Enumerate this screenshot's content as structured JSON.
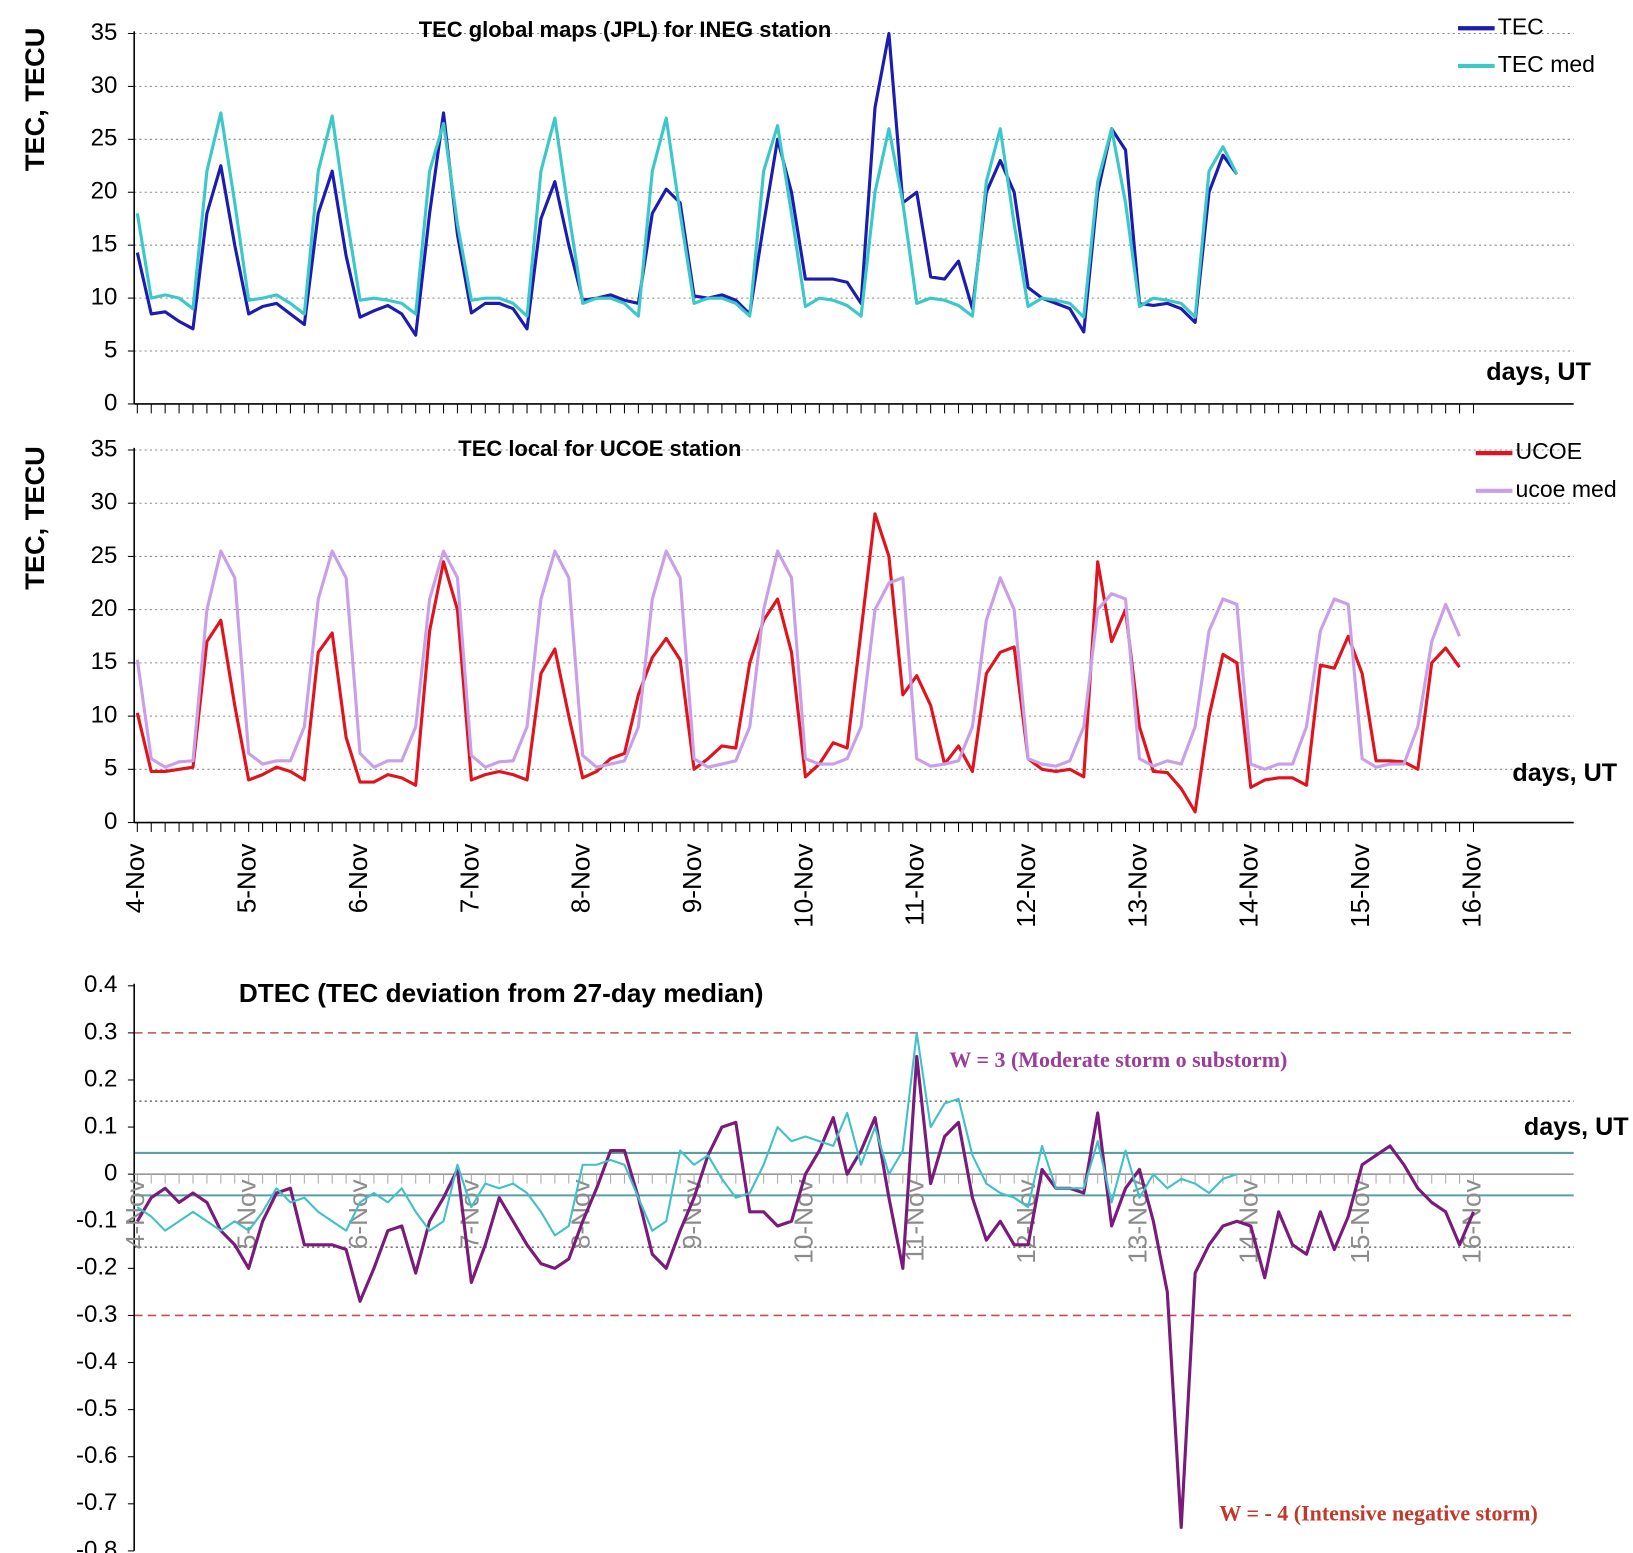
{
  "chart_data": [
    {
      "type": "line",
      "title": "TEC global maps (JPL) for INEG station",
      "y_label": "TEC, TECU",
      "x_label": "days, UT",
      "x": [
        0,
        0.125,
        0.25,
        0.375,
        0.5,
        0.625,
        0.75,
        0.875,
        1,
        1.125,
        1.25,
        1.375,
        1.5,
        1.625,
        1.75,
        1.875,
        2,
        2.125,
        2.25,
        2.375,
        2.5,
        2.625,
        2.75,
        2.875,
        3,
        3.125,
        3.25,
        3.375,
        3.5,
        3.625,
        3.75,
        3.875,
        4,
        4.125,
        4.25,
        4.375,
        4.5,
        4.625,
        4.75,
        4.875,
        5,
        5.125,
        5.25,
        5.375,
        5.5,
        5.625,
        5.75,
        5.875,
        6,
        6.125,
        6.25,
        6.375,
        6.5,
        6.625,
        6.75,
        6.875,
        7,
        7.125,
        7.25,
        7.375,
        7.5,
        7.625,
        7.75,
        7.875,
        8,
        8.125,
        8.25,
        8.375,
        8.5,
        8.625,
        8.75,
        8.875,
        9,
        9.125,
        9.25,
        9.375,
        9.5,
        9.625,
        9.75,
        9.875,
        10,
        10.125,
        10.25,
        10.375,
        10.5,
        10.625,
        10.75,
        10.875,
        11,
        11.125,
        11.25,
        11.375,
        11.5,
        11.625,
        11.75,
        11.875,
        12
      ],
      "xlim": [
        0,
        12.9
      ],
      "ylim": [
        0,
        35
      ],
      "yticks": [
        0,
        5,
        10,
        15,
        20,
        25,
        30,
        35
      ],
      "grid": true,
      "legend": "top-right",
      "series": [
        {
          "name": "TEC",
          "color": "#1c1cb0",
          "values": [
            14.3,
            8.5,
            8.7,
            7.8,
            7.1,
            18,
            22.5,
            15,
            8.5,
            9.2,
            9.5,
            8.5,
            7.5,
            18,
            22,
            14,
            8.2,
            8.8,
            9.3,
            8.5,
            6.5,
            18,
            27.5,
            16,
            8.6,
            9.5,
            9.5,
            9,
            7.1,
            17.5,
            21,
            15,
            9.8,
            10,
            10.3,
            9.8,
            9.5,
            18,
            20.3,
            19,
            10.2,
            10,
            10.3,
            9.8,
            8.5,
            17,
            25,
            20,
            11.8,
            11.8,
            11.8,
            11.5,
            9.5,
            28,
            35,
            19,
            20,
            12,
            11.8,
            13.5,
            9,
            20,
            23,
            20,
            11,
            10,
            9.5,
            9,
            6.8,
            20,
            26,
            24,
            9.5,
            9.3,
            9.5,
            9,
            7.7,
            20,
            23.5,
            21.7,
            null,
            null,
            null,
            null,
            null,
            null,
            null,
            null,
            null,
            null,
            null,
            null,
            null,
            null,
            null,
            null,
            null
          ]
        },
        {
          "name": "TEC med",
          "color": "#3cc8c8",
          "values": [
            18,
            10,
            10.3,
            10,
            9,
            22,
            27.5,
            19,
            9.8,
            10,
            10.3,
            9.5,
            8.5,
            22,
            27.2,
            18,
            9.8,
            10,
            9.8,
            9.5,
            8.5,
            22,
            26.5,
            17,
            9.8,
            10,
            10,
            9.5,
            8.3,
            22,
            27,
            18,
            9.5,
            10,
            10,
            9.5,
            8.3,
            22,
            27,
            18,
            9.5,
            10,
            10,
            9.5,
            8.3,
            22,
            26.3,
            18,
            9.2,
            10,
            9.8,
            9.3,
            8.3,
            20,
            26,
            19,
            9.5,
            10,
            9.8,
            9.3,
            8.3,
            21,
            26,
            17,
            9.2,
            10,
            9.8,
            9.5,
            8.2,
            21,
            26,
            19,
            9.2,
            10,
            9.8,
            9.5,
            8.2,
            22,
            24.3,
            21.7,
            null,
            null,
            null,
            null,
            null,
            null,
            null,
            null,
            null,
            null,
            null,
            null,
            null,
            null,
            null,
            null,
            null
          ]
        }
      ]
    },
    {
      "type": "line",
      "title": "TEC local for UCOE station",
      "y_label": "TEC, TECU",
      "x_label": "days, UT",
      "x": [
        0,
        0.125,
        0.25,
        0.375,
        0.5,
        0.625,
        0.75,
        0.875,
        1,
        1.125,
        1.25,
        1.375,
        1.5,
        1.625,
        1.75,
        1.875,
        2,
        2.125,
        2.25,
        2.375,
        2.5,
        2.625,
        2.75,
        2.875,
        3,
        3.125,
        3.25,
        3.375,
        3.5,
        3.625,
        3.75,
        3.875,
        4,
        4.125,
        4.25,
        4.375,
        4.5,
        4.625,
        4.75,
        4.875,
        5,
        5.125,
        5.25,
        5.375,
        5.5,
        5.625,
        5.75,
        5.875,
        6,
        6.125,
        6.25,
        6.375,
        6.5,
        6.625,
        6.75,
        6.875,
        7,
        7.125,
        7.25,
        7.375,
        7.5,
        7.625,
        7.75,
        7.875,
        8,
        8.125,
        8.25,
        8.375,
        8.5,
        8.625,
        8.75,
        8.875,
        9,
        9.125,
        9.25,
        9.375,
        9.5,
        9.625,
        9.75,
        9.875,
        10,
        10.125,
        10.25,
        10.375,
        10.5,
        10.625,
        10.75,
        10.875,
        11,
        11.125,
        11.25,
        11.375,
        11.5,
        11.625,
        11.75,
        11.875,
        12
      ],
      "xlim": [
        0,
        12.9
      ],
      "ylim": [
        0,
        35
      ],
      "yticks": [
        0,
        5,
        10,
        15,
        20,
        25,
        30,
        35
      ],
      "grid": true,
      "legend": "top-right",
      "xticks": [
        {
          "value": 0,
          "label": "4-Nov"
        },
        {
          "value": 1,
          "label": "5-Nov"
        },
        {
          "value": 2,
          "label": "6-Nov"
        },
        {
          "value": 3,
          "label": "7-Nov"
        },
        {
          "value": 4,
          "label": "8-Nov"
        },
        {
          "value": 5,
          "label": "9-Nov"
        },
        {
          "value": 6,
          "label": "10-Nov"
        },
        {
          "value": 7,
          "label": "11-Nov"
        },
        {
          "value": 8,
          "label": "12-Nov"
        },
        {
          "value": 9,
          "label": "13-Nov"
        },
        {
          "value": 10,
          "label": "14-Nov"
        },
        {
          "value": 11,
          "label": "15-Nov"
        },
        {
          "value": 12,
          "label": "16-Nov"
        }
      ],
      "series": [
        {
          "name": "UCOE",
          "color": "#e0141e",
          "values": [
            10.3,
            4.8,
            4.8,
            5,
            5.2,
            17,
            19,
            11,
            4,
            4.5,
            5.2,
            4.8,
            4,
            16,
            17.8,
            8,
            3.8,
            3.8,
            4.5,
            4.2,
            3.5,
            18,
            24.5,
            20,
            4,
            4.5,
            4.8,
            4.5,
            4,
            14,
            16.3,
            10,
            4.2,
            4.8,
            6,
            6.5,
            12,
            15.5,
            17.3,
            15.3,
            5,
            6,
            7.2,
            7,
            15,
            19,
            21,
            16,
            4.3,
            5.5,
            7.5,
            7,
            18,
            29,
            25,
            12,
            13.8,
            11,
            5.5,
            7.2,
            4.8,
            14,
            16,
            16.5,
            6,
            5,
            4.8,
            5,
            4.3,
            24.5,
            17,
            20,
            9,
            4.8,
            4.7,
            3.2,
            1,
            10,
            15.8,
            15,
            3.3,
            4,
            4.2,
            4.2,
            3.5,
            14.8,
            14.5,
            17.5,
            14,
            5.8,
            5.8,
            5.7,
            5,
            15,
            16.4,
            14.6,
            null
          ]
        },
        {
          "name": "ucoe med",
          "color": "#c9a0e8",
          "values": [
            15.3,
            6,
            5.2,
            5.7,
            5.8,
            20,
            25.5,
            23,
            6.5,
            5.5,
            5.8,
            5.8,
            9,
            21,
            25.5,
            23,
            6.5,
            5.2,
            5.8,
            5.8,
            9,
            21,
            25.5,
            23,
            6.3,
            5.2,
            5.7,
            5.8,
            9,
            21,
            25.5,
            23,
            6.3,
            5.2,
            5.5,
            5.8,
            9,
            21,
            25.5,
            23,
            6,
            5.2,
            5.5,
            5.8,
            9,
            20,
            25.5,
            23,
            6,
            5.5,
            5.5,
            6,
            9,
            20,
            22.5,
            23,
            6,
            5.3,
            5.5,
            5.8,
            9,
            19,
            23,
            20,
            6,
            5.5,
            5.3,
            5.8,
            9,
            20,
            21.5,
            21,
            6,
            5.3,
            5.8,
            5.5,
            9,
            18,
            21,
            20.5,
            5.5,
            5,
            5.5,
            5.5,
            9,
            18,
            21,
            20.5,
            6,
            5.2,
            5.5,
            5.5,
            9,
            17,
            20.5,
            17.5,
            null
          ]
        }
      ]
    },
    {
      "type": "line",
      "title": "DTEC (TEC deviation from 27-day median)",
      "x_label": "days, UT",
      "x": [
        0,
        0.125,
        0.25,
        0.375,
        0.5,
        0.625,
        0.75,
        0.875,
        1,
        1.125,
        1.25,
        1.375,
        1.5,
        1.625,
        1.75,
        1.875,
        2,
        2.125,
        2.25,
        2.375,
        2.5,
        2.625,
        2.75,
        2.875,
        3,
        3.125,
        3.25,
        3.375,
        3.5,
        3.625,
        3.75,
        3.875,
        4,
        4.125,
        4.25,
        4.375,
        4.5,
        4.625,
        4.75,
        4.875,
        5,
        5.125,
        5.25,
        5.375,
        5.5,
        5.625,
        5.75,
        5.875,
        6,
        6.125,
        6.25,
        6.375,
        6.5,
        6.625,
        6.75,
        6.875,
        7,
        7.125,
        7.25,
        7.375,
        7.5,
        7.625,
        7.75,
        7.875,
        8,
        8.125,
        8.25,
        8.375,
        8.5,
        8.625,
        8.75,
        8.875,
        9,
        9.125,
        9.25,
        9.375,
        9.5,
        9.625,
        9.75,
        9.875,
        10,
        10.125,
        10.25,
        10.375,
        10.5,
        10.625,
        10.75,
        10.875,
        11,
        11.125,
        11.25,
        11.375,
        11.5,
        11.625,
        11.75,
        11.875,
        12
      ],
      "xlim": [
        0,
        12.9
      ],
      "ylim": [
        -0.8,
        0.4
      ],
      "yticks": [
        -0.8,
        -0.7,
        -0.6,
        -0.5,
        -0.4,
        -0.3,
        -0.2,
        -0.1,
        0,
        0.1,
        0.2,
        0.3,
        0.4
      ],
      "xticks": [
        {
          "value": 0,
          "label": "4-Nov"
        },
        {
          "value": 1,
          "label": "5-Nov"
        },
        {
          "value": 2,
          "label": "6-Nov"
        },
        {
          "value": 3,
          "label": "7-Nov"
        },
        {
          "value": 4,
          "label": "8-Nov"
        },
        {
          "value": 5,
          "label": "9-Nov"
        },
        {
          "value": 6,
          "label": "10-Nov"
        },
        {
          "value": 7,
          "label": "11-Nov"
        },
        {
          "value": 8,
          "label": "12-Nov"
        },
        {
          "value": 9,
          "label": "13-Nov"
        },
        {
          "value": 10,
          "label": "14-Nov"
        },
        {
          "value": 11,
          "label": "15-Nov"
        },
        {
          "value": 12,
          "label": "16-Nov"
        }
      ],
      "reference_lines": [
        {
          "value": 0.3,
          "color": "#c0504d",
          "style": "dashed"
        },
        {
          "value": -0.3,
          "color": "#c0504d",
          "style": "dashed"
        },
        {
          "value": 0.155,
          "color": "#777777",
          "style": "dotted"
        },
        {
          "value": -0.155,
          "color": "#777777",
          "style": "dotted"
        },
        {
          "value": 0.045,
          "color": "#5a9ea6",
          "style": "solid"
        },
        {
          "value": -0.045,
          "color": "#5a9ea6",
          "style": "solid"
        }
      ],
      "annotations": [
        {
          "text": "W = 3 (Moderate storm o substorm)",
          "color": "#9b3d9b"
        },
        {
          "text": "W = - 4 (Intensive negative storm)",
          "color": "#c0392b"
        }
      ],
      "series": [
        {
          "color": "#7a1a7a",
          "values": [
            -0.1,
            -0.05,
            -0.03,
            -0.06,
            -0.04,
            -0.06,
            -0.12,
            -0.15,
            -0.2,
            -0.1,
            -0.04,
            -0.03,
            -0.15,
            -0.15,
            -0.15,
            -0.16,
            -0.27,
            -0.2,
            -0.12,
            -0.11,
            -0.21,
            -0.1,
            -0.05,
            0.01,
            -0.23,
            -0.15,
            -0.05,
            -0.1,
            -0.15,
            -0.19,
            -0.2,
            -0.18,
            -0.1,
            -0.03,
            0.05,
            0.05,
            -0.05,
            -0.17,
            -0.2,
            -0.12,
            -0.05,
            0.04,
            0.1,
            0.11,
            -0.08,
            -0.08,
            -0.11,
            -0.1,
            0,
            0.05,
            0.12,
            0,
            0.05,
            0.12,
            -0.05,
            -0.2,
            0.25,
            -0.02,
            0.08,
            0.11,
            -0.05,
            -0.14,
            -0.1,
            -0.15,
            -0.15,
            0.01,
            -0.03,
            -0.03,
            -0.04,
            0.13,
            -0.11,
            -0.03,
            0.01,
            -0.1,
            -0.25,
            -0.75,
            -0.21,
            -0.15,
            -0.11,
            -0.1,
            -0.11,
            -0.22,
            -0.08,
            -0.15,
            -0.17,
            -0.08,
            -0.16,
            -0.09,
            0.02,
            0.04,
            0.06,
            0.02,
            -0.03,
            -0.06,
            -0.08,
            -0.15,
            -0.08
          ]
        },
        {
          "color": "#40c0c8",
          "values": [
            -0.07,
            -0.09,
            -0.12,
            -0.1,
            -0.08,
            -0.1,
            -0.12,
            -0.1,
            -0.12,
            -0.08,
            -0.03,
            -0.06,
            -0.05,
            -0.08,
            -0.1,
            -0.12,
            -0.06,
            -0.04,
            -0.06,
            -0.03,
            -0.08,
            -0.12,
            -0.1,
            0.02,
            -0.07,
            -0.02,
            -0.03,
            -0.02,
            -0.04,
            -0.08,
            -0.13,
            -0.11,
            0.02,
            0.02,
            0.03,
            0.02,
            -0.05,
            -0.12,
            -0.1,
            0.05,
            0.02,
            0.04,
            -0.01,
            -0.05,
            -0.04,
            0.02,
            0.1,
            0.07,
            0.08,
            0.07,
            0.06,
            0.13,
            0.02,
            0.1,
            0,
            0.05,
            0.3,
            0.1,
            0.15,
            0.16,
            0.04,
            -0.02,
            -0.04,
            -0.05,
            -0.07,
            0.06,
            -0.03,
            -0.03,
            -0.03,
            0.07,
            -0.06,
            0.05,
            -0.05,
            0,
            -0.03,
            -0.01,
            -0.02,
            -0.04,
            -0.01,
            0,
            null,
            null,
            null,
            null,
            null,
            null,
            null,
            null,
            null,
            null,
            null,
            null,
            null,
            null,
            null,
            null,
            null
          ]
        }
      ]
    }
  ]
}
